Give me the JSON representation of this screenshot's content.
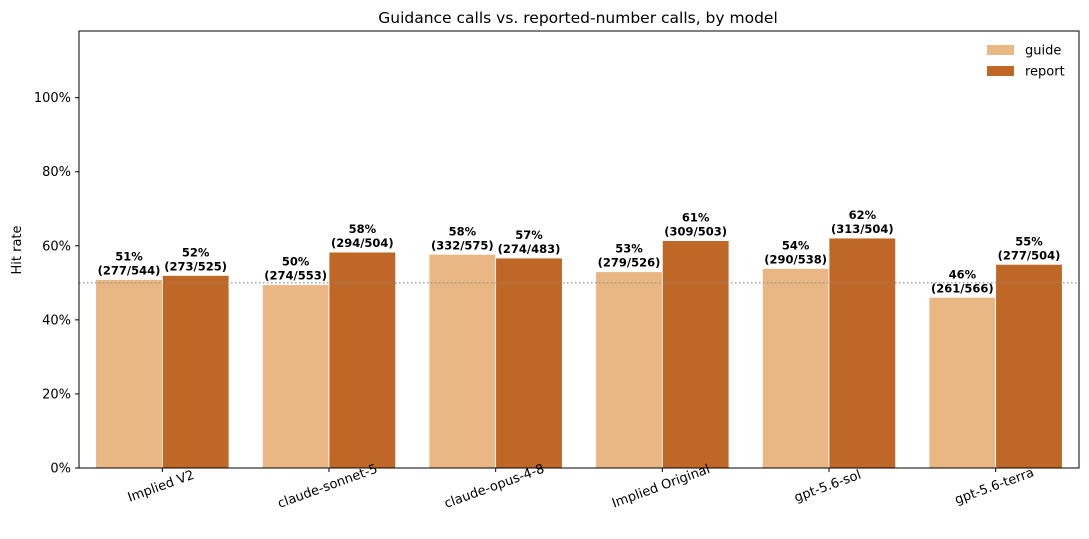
{
  "chart_data": {
    "type": "bar",
    "title": "Guidance calls vs. reported-number calls, by model",
    "xlabel": "",
    "ylabel": "Hit rate",
    "ylim": [
      0,
      1.18
    ],
    "yticks": [
      0,
      0.2,
      0.4,
      0.6,
      0.8,
      1.0
    ],
    "ytick_labels": [
      "0%",
      "20%",
      "40%",
      "60%",
      "80%",
      "100%"
    ],
    "reference_line": 0.5,
    "legend_position": "top-right",
    "grid": false,
    "categories": [
      "Implied V2",
      "claude-sonnet-5",
      "claude-opus-4-8",
      "Implied Original",
      "gpt-5.6-sol",
      "gpt-5.6-terra"
    ],
    "series": [
      {
        "name": "guide",
        "color": "#E8B784",
        "values": [
          0.509,
          0.495,
          0.577,
          0.53,
          0.539,
          0.461
        ],
        "pct_labels": [
          "51%",
          "50%",
          "58%",
          "53%",
          "54%",
          "46%"
        ],
        "count_labels": [
          "(277/544)",
          "(274/553)",
          "(332/575)",
          "(279/526)",
          "(290/538)",
          "(261/566)"
        ]
      },
      {
        "name": "report",
        "color": "#BF6727",
        "values": [
          0.52,
          0.583,
          0.567,
          0.614,
          0.621,
          0.55
        ],
        "pct_labels": [
          "52%",
          "58%",
          "57%",
          "61%",
          "62%",
          "55%"
        ],
        "count_labels": [
          "(273/525)",
          "(294/504)",
          "(274/483)",
          "(309/503)",
          "(313/504)",
          "(277/504)"
        ]
      }
    ]
  }
}
